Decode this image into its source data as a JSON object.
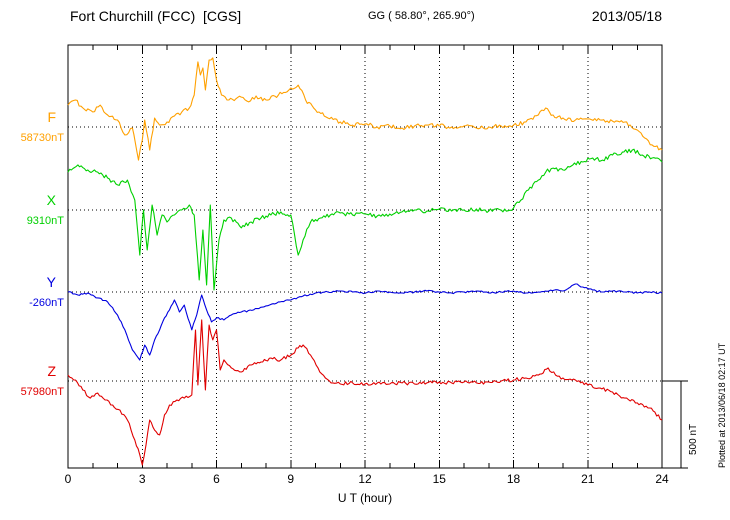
{
  "header": {
    "station_title": "Fort Churchill (FCC)  [CGS]",
    "gg_coords": "GG ( 58.80°, 265.90°)",
    "date": "2013/05/18"
  },
  "annotations": {
    "plotted_at": "Plotted at 2013/06/18 02:17 UT",
    "scale_label": "500 nT"
  },
  "chart_data": {
    "type": "line",
    "title": "Fort Churchill (FCC) [CGS] magnetogram 2013/05/18",
    "xlabel": "U T (hour)",
    "x_range": [
      0,
      24
    ],
    "x_ticks": [
      0,
      3,
      6,
      9,
      12,
      15,
      18,
      21,
      24
    ],
    "grid": "dotted vertical lines every 3 hours; dotted horizontal line at each component baseline",
    "scale_nT": 500,
    "series": [
      {
        "name": "F",
        "baseline_label": "58730nT",
        "baseline_nT": 58730,
        "color": "#ffa000",
        "noise_nT": 12,
        "points": [
          [
            0,
            126
          ],
          [
            0.3,
            155
          ],
          [
            0.6,
            110
          ],
          [
            1,
            86
          ],
          [
            1.3,
            126
          ],
          [
            1.6,
            69
          ],
          [
            2,
            40
          ],
          [
            2.3,
            -46
          ],
          [
            2.6,
            -6
          ],
          [
            2.85,
            -190
          ],
          [
            3,
            -75
          ],
          [
            3.1,
            40
          ],
          [
            3.3,
            -132
          ],
          [
            3.5,
            52
          ],
          [
            3.7,
            11
          ],
          [
            4,
            29
          ],
          [
            4.3,
            63
          ],
          [
            4.6,
            86
          ],
          [
            4.9,
            109
          ],
          [
            5.1,
            184
          ],
          [
            5.25,
            374
          ],
          [
            5.35,
            299
          ],
          [
            5.45,
            339
          ],
          [
            5.55,
            213
          ],
          [
            5.7,
            385
          ],
          [
            5.85,
            397
          ],
          [
            6,
            270
          ],
          [
            6.2,
            184
          ],
          [
            6.5,
            155
          ],
          [
            7,
            172
          ],
          [
            7.3,
            144
          ],
          [
            7.6,
            178
          ],
          [
            8,
            155
          ],
          [
            8.5,
            184
          ],
          [
            9,
            224
          ],
          [
            9.3,
            241
          ],
          [
            9.6,
            155
          ],
          [
            10,
            98
          ],
          [
            10.5,
            52
          ],
          [
            11,
            29
          ],
          [
            11.5,
            11
          ],
          [
            12,
            17
          ],
          [
            12.5,
            0
          ],
          [
            13,
            6
          ],
          [
            13.5,
            -6
          ],
          [
            14,
            6
          ],
          [
            14.5,
            11
          ],
          [
            15,
            6
          ],
          [
            15.5,
            0
          ],
          [
            16,
            6
          ],
          [
            16.5,
            -6
          ],
          [
            17,
            0
          ],
          [
            17.5,
            6
          ],
          [
            18,
            11
          ],
          [
            18.5,
            29
          ],
          [
            19,
            69
          ],
          [
            19.3,
            109
          ],
          [
            19.6,
            69
          ],
          [
            20,
            52
          ],
          [
            20.5,
            40
          ],
          [
            21,
            46
          ],
          [
            21.5,
            40
          ],
          [
            22,
            34
          ],
          [
            22.5,
            29
          ],
          [
            23,
            -17
          ],
          [
            23.3,
            -63
          ],
          [
            23.6,
            -103
          ],
          [
            24,
            -132
          ]
        ]
      },
      {
        "name": "X",
        "baseline_label": "9310nT",
        "baseline_nT": 9310,
        "color": "#00d000",
        "noise_nT": 12,
        "points": [
          [
            0,
            218
          ],
          [
            0.4,
            259
          ],
          [
            0.8,
            230
          ],
          [
            1.2,
            218
          ],
          [
            1.6,
            184
          ],
          [
            2,
            144
          ],
          [
            2.4,
            172
          ],
          [
            2.7,
            57
          ],
          [
            2.9,
            -259
          ],
          [
            3.05,
            0
          ],
          [
            3.2,
            -230
          ],
          [
            3.4,
            29
          ],
          [
            3.6,
            -144
          ],
          [
            3.8,
            -29
          ],
          [
            4,
            -69
          ],
          [
            4.3,
            -29
          ],
          [
            4.6,
            0
          ],
          [
            4.9,
            29
          ],
          [
            5.1,
            -29
          ],
          [
            5.3,
            -402
          ],
          [
            5.45,
            -115
          ],
          [
            5.6,
            -431
          ],
          [
            5.75,
            29
          ],
          [
            5.9,
            -460
          ],
          [
            6.1,
            -172
          ],
          [
            6.3,
            -57
          ],
          [
            6.6,
            -46
          ],
          [
            7,
            -103
          ],
          [
            7.4,
            -69
          ],
          [
            7.8,
            -46
          ],
          [
            8.2,
            -29
          ],
          [
            8.6,
            -11
          ],
          [
            9,
            -29
          ],
          [
            9.3,
            -259
          ],
          [
            9.5,
            -172
          ],
          [
            9.8,
            -69
          ],
          [
            10.2,
            -46
          ],
          [
            10.6,
            -29
          ],
          [
            11,
            -17
          ],
          [
            11.5,
            -29
          ],
          [
            12,
            -23
          ],
          [
            12.5,
            -34
          ],
          [
            13,
            -23
          ],
          [
            13.5,
            -11
          ],
          [
            14,
            0
          ],
          [
            14.5,
            -6
          ],
          [
            15,
            6
          ],
          [
            15.5,
            -6
          ],
          [
            16,
            0
          ],
          [
            16.5,
            6
          ],
          [
            17,
            -6
          ],
          [
            17.5,
            0
          ],
          [
            18,
            11
          ],
          [
            18.3,
            57
          ],
          [
            18.6,
            115
          ],
          [
            19,
            172
          ],
          [
            19.3,
            218
          ],
          [
            19.6,
            241
          ],
          [
            20,
            230
          ],
          [
            20.4,
            259
          ],
          [
            20.8,
            276
          ],
          [
            21.2,
            299
          ],
          [
            21.6,
            287
          ],
          [
            22,
            316
          ],
          [
            22.4,
            333
          ],
          [
            22.8,
            345
          ],
          [
            23.2,
            316
          ],
          [
            23.6,
            299
          ],
          [
            24,
            276
          ]
        ]
      },
      {
        "name": "Y",
        "baseline_label": "-260nT",
        "baseline_nT": -260,
        "color": "#0000e0",
        "noise_nT": 5,
        "points": [
          [
            0,
            0
          ],
          [
            0.4,
            -17
          ],
          [
            0.8,
            -6
          ],
          [
            1.2,
            -34
          ],
          [
            1.6,
            -57
          ],
          [
            2,
            -132
          ],
          [
            2.3,
            -218
          ],
          [
            2.6,
            -333
          ],
          [
            2.9,
            -391
          ],
          [
            3.1,
            -305
          ],
          [
            3.3,
            -362
          ],
          [
            3.5,
            -276
          ],
          [
            3.7,
            -218
          ],
          [
            3.9,
            -149
          ],
          [
            4.1,
            -103
          ],
          [
            4.3,
            -46
          ],
          [
            4.5,
            -115
          ],
          [
            4.7,
            -75
          ],
          [
            5,
            -218
          ],
          [
            5.2,
            -132
          ],
          [
            5.4,
            -17
          ],
          [
            5.6,
            -103
          ],
          [
            5.8,
            -172
          ],
          [
            6,
            -149
          ],
          [
            6.3,
            -161
          ],
          [
            6.6,
            -132
          ],
          [
            7,
            -115
          ],
          [
            7.5,
            -103
          ],
          [
            8,
            -80
          ],
          [
            8.5,
            -57
          ],
          [
            9,
            -46
          ],
          [
            9.5,
            -23
          ],
          [
            10,
            -6
          ],
          [
            10.5,
            0
          ],
          [
            11,
            6
          ],
          [
            11.5,
            0
          ],
          [
            12,
            -6
          ],
          [
            12.5,
            6
          ],
          [
            13,
            0
          ],
          [
            13.5,
            -6
          ],
          [
            14,
            0
          ],
          [
            14.5,
            6
          ],
          [
            15,
            0
          ],
          [
            15.5,
            -6
          ],
          [
            16,
            0
          ],
          [
            16.5,
            6
          ],
          [
            17,
            -6
          ],
          [
            17.5,
            0
          ],
          [
            18,
            6
          ],
          [
            18.5,
            -6
          ],
          [
            19,
            0
          ],
          [
            19.5,
            11
          ],
          [
            20,
            6
          ],
          [
            20.5,
            46
          ],
          [
            20.8,
            29
          ],
          [
            21.2,
            11
          ],
          [
            21.6,
            0
          ],
          [
            22,
            6
          ],
          [
            22.5,
            0
          ],
          [
            23,
            -6
          ],
          [
            23.5,
            0
          ],
          [
            24,
            -6
          ]
        ]
      },
      {
        "name": "Z",
        "baseline_label": "57980nT",
        "baseline_nT": 57980,
        "color": "#e00000",
        "noise_nT": 10,
        "points": [
          [
            0,
            34
          ],
          [
            0.3,
            6
          ],
          [
            0.6,
            -52
          ],
          [
            0.9,
            -98
          ],
          [
            1.2,
            -69
          ],
          [
            1.5,
            -109
          ],
          [
            1.8,
            -138
          ],
          [
            2.1,
            -167
          ],
          [
            2.4,
            -224
          ],
          [
            2.7,
            -339
          ],
          [
            2.9,
            -425
          ],
          [
            3,
            -483
          ],
          [
            3.15,
            -368
          ],
          [
            3.3,
            -224
          ],
          [
            3.5,
            -282
          ],
          [
            3.7,
            -310
          ],
          [
            3.9,
            -195
          ],
          [
            4.1,
            -138
          ],
          [
            4.4,
            -109
          ],
          [
            4.7,
            -98
          ],
          [
            5,
            -80
          ],
          [
            5.15,
            293
          ],
          [
            5.25,
            -23
          ],
          [
            5.4,
            351
          ],
          [
            5.55,
            -52
          ],
          [
            5.7,
            322
          ],
          [
            5.85,
            236
          ],
          [
            6,
            293
          ],
          [
            6.15,
            63
          ],
          [
            6.3,
            121
          ],
          [
            6.6,
            75
          ],
          [
            7,
            52
          ],
          [
            7.4,
            92
          ],
          [
            7.8,
            109
          ],
          [
            8.2,
            132
          ],
          [
            8.6,
            121
          ],
          [
            9,
            149
          ],
          [
            9.3,
            190
          ],
          [
            9.5,
            207
          ],
          [
            9.8,
            149
          ],
          [
            10.1,
            75
          ],
          [
            10.4,
            17
          ],
          [
            10.7,
            -11
          ],
          [
            11,
            -17
          ],
          [
            11.5,
            -11
          ],
          [
            12,
            -17
          ],
          [
            12.5,
            -11
          ],
          [
            13,
            -17
          ],
          [
            13.5,
            -11
          ],
          [
            14,
            -17
          ],
          [
            14.5,
            -11
          ],
          [
            15,
            -6
          ],
          [
            15.5,
            -11
          ],
          [
            16,
            -6
          ],
          [
            16.5,
            -11
          ],
          [
            17,
            -6
          ],
          [
            17.5,
            0
          ],
          [
            18,
            6
          ],
          [
            18.5,
            17
          ],
          [
            19,
            34
          ],
          [
            19.4,
            75
          ],
          [
            19.7,
            34
          ],
          [
            20,
            17
          ],
          [
            20.5,
            6
          ],
          [
            21,
            -23
          ],
          [
            21.5,
            -40
          ],
          [
            22,
            -63
          ],
          [
            22.5,
            -98
          ],
          [
            23,
            -126
          ],
          [
            23.5,
            -155
          ],
          [
            24,
            -224
          ]
        ]
      }
    ]
  }
}
